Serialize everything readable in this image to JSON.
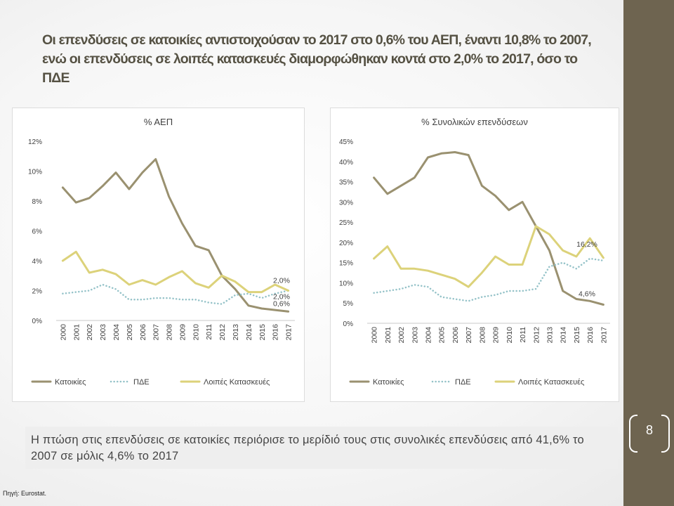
{
  "title": "Οι επενδύσεις σε κατοικίες αντιστοιχούσαν το 2017 στο 0,6% του ΑΕΠ, έναντι 10,8% το 2007, ενώ οι επενδύσεις σε λοιπές κατασκευές διαμορφώθηκαν κοντά στο 2,0% το 2017, όσο το ΠΔΕ",
  "note": "Η πτώση στις επενδύσεις σε κατοικίες περιόρισε το μερίδιό τους στις συνολικές επενδύσεις από 41,6% το 2007 σε μόλις 4,6% το 2017",
  "source": "Πηγή: Eurostat.",
  "page_number": "8",
  "colors": {
    "sidebar": "#6e6450",
    "kat": "#9a9170",
    "pde": "#94c2c8",
    "loipes": "#dcd27a"
  },
  "chart_data": [
    {
      "type": "line",
      "title": "% ΑΕΠ",
      "x": [
        "2000",
        "2001",
        "2002",
        "2003",
        "2004",
        "2005",
        "2006",
        "2007",
        "2008",
        "2009",
        "2010",
        "2011",
        "2012",
        "2013",
        "2014",
        "2015",
        "2016",
        "2017"
      ],
      "ylim": [
        0,
        12
      ],
      "y_ticks": [
        "0%",
        "2%",
        "4%",
        "6%",
        "8%",
        "10%",
        "12%"
      ],
      "grid": false,
      "legend": "bottom",
      "series": [
        {
          "name": "Κατοικίες",
          "style": "solid",
          "values": [
            8.9,
            7.9,
            8.2,
            9.0,
            9.9,
            8.8,
            9.9,
            10.8,
            8.3,
            6.5,
            5.0,
            4.7,
            3.0,
            2.1,
            1.0,
            0.8,
            0.7,
            0.6
          ]
        },
        {
          "name": "ΠΔΕ",
          "style": "dotted",
          "values": [
            1.8,
            1.9,
            2.0,
            2.4,
            2.1,
            1.4,
            1.4,
            1.5,
            1.5,
            1.4,
            1.4,
            1.2,
            1.1,
            1.7,
            1.8,
            1.5,
            1.8,
            2.0
          ]
        },
        {
          "name": "Λοιπές Κατασκευές",
          "style": "solid",
          "values": [
            4.0,
            4.6,
            3.2,
            3.4,
            3.1,
            2.4,
            2.7,
            2.4,
            2.9,
            3.3,
            2.5,
            2.2,
            3.0,
            2.6,
            1.9,
            1.9,
            2.4,
            2.0
          ]
        }
      ],
      "labels": [
        {
          "series": 2,
          "text": "2,0%"
        },
        {
          "series": 1,
          "text": "2,0%"
        },
        {
          "series": 0,
          "text": "0,6%"
        }
      ]
    },
    {
      "type": "line",
      "title": "% Συνολικών επενδύσεων",
      "x": [
        "2000",
        "2001",
        "2002",
        "2003",
        "2004",
        "2005",
        "2006",
        "2007",
        "2008",
        "2009",
        "2010",
        "2011",
        "2012",
        "2013",
        "2014",
        "2015",
        "2016",
        "2017"
      ],
      "ylim": [
        0,
        45
      ],
      "y_ticks": [
        "0%",
        "5%",
        "10%",
        "15%",
        "20%",
        "25%",
        "30%",
        "35%",
        "40%",
        "45%"
      ],
      "grid": false,
      "legend": "bottom",
      "series": [
        {
          "name": "Κατοικίες",
          "style": "solid",
          "values": [
            36,
            32,
            34,
            36,
            41,
            42,
            42.3,
            41.6,
            34,
            31.5,
            28,
            30,
            24,
            18,
            8,
            6,
            5.5,
            4.6
          ]
        },
        {
          "name": "ΠΔΕ",
          "style": "dotted",
          "values": [
            7.5,
            8,
            8.5,
            9.5,
            9,
            6.5,
            6,
            5.5,
            6.5,
            7,
            8,
            8,
            8.5,
            14,
            15,
            13.5,
            16,
            15.5
          ]
        },
        {
          "name": "Λοιπές Κατασκευές",
          "style": "solid",
          "values": [
            16,
            19,
            13.5,
            13.5,
            13,
            12,
            11,
            9,
            12.5,
            16.5,
            14.5,
            14.5,
            24,
            22,
            18,
            16.5,
            21,
            16.2
          ]
        }
      ],
      "labels": [
        {
          "series": 2,
          "text": "16,2%"
        },
        {
          "series": 0,
          "text": "4,6%"
        }
      ]
    }
  ]
}
